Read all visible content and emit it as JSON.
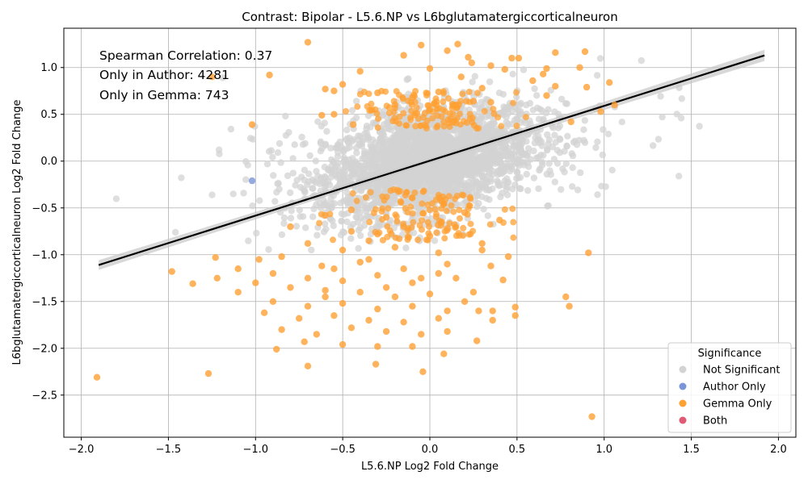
{
  "chart_data": {
    "type": "scatter",
    "title": "Contrast: Bipolar - L5.6.NP vs L6bglutamatergiccorticalneuron",
    "xlabel": "L5.6.NP Log2 Fold Change",
    "ylabel": "L6bglutamatergiccorticalneuron Log2 Fold Change",
    "xlim": [
      -2.1,
      2.1
    ],
    "ylim": [
      -2.95,
      1.42
    ],
    "x_ticks": [
      -2.0,
      -1.5,
      -1.0,
      -0.5,
      0.0,
      0.5,
      1.0,
      1.5,
      2.0
    ],
    "y_ticks": [
      -2.5,
      -2.0,
      -1.5,
      -1.0,
      -0.5,
      0.0,
      0.5,
      1.0
    ],
    "x_tick_labels": [
      "−2.0",
      "−1.5",
      "−1.0",
      "−0.5",
      "0.0",
      "0.5",
      "1.0",
      "1.5",
      "2.0"
    ],
    "y_tick_labels": [
      "−2.5",
      "−2.0",
      "−1.5",
      "−1.0",
      "−0.5",
      "0.0",
      "0.5",
      "1.0"
    ],
    "grid": true,
    "annotations": [
      "Spearman Correlation: 0.37",
      "Only in Author: 4281",
      "Only in Gemma: 743"
    ],
    "legend": {
      "title": "Significance",
      "placement": "lower-right",
      "entries": [
        {
          "label": "Not Significant",
          "color": "#d3d3d3"
        },
        {
          "label": "Author Only",
          "color": "#7b96d8"
        },
        {
          "label": "Gemma Only",
          "color": "#ffa033"
        },
        {
          "label": "Both",
          "color": "#e05a73"
        }
      ]
    },
    "regression_line": {
      "x": [
        -1.9,
        1.92
      ],
      "y": [
        -1.11,
        1.13
      ],
      "color": "#000000",
      "band_color": "#c8c8c8"
    },
    "series": [
      {
        "name": "Gemma Only",
        "color": "#ffa033",
        "points": [
          [
            -0.7,
            1.27
          ],
          [
            0.16,
            1.25
          ],
          [
            -0.05,
            1.24
          ],
          [
            0.72,
            1.16
          ],
          [
            0.89,
            1.17
          ],
          [
            0.1,
            1.18
          ],
          [
            -0.15,
            1.13
          ],
          [
            0.22,
            1.11
          ],
          [
            0.47,
            1.1
          ],
          [
            0.51,
            1.1
          ],
          [
            0.35,
            1.02
          ],
          [
            0.67,
            0.99
          ],
          [
            0.86,
            1.0
          ],
          [
            0.24,
            1.05
          ],
          [
            -0.4,
            0.96
          ],
          [
            0.0,
            0.99
          ],
          [
            -1.25,
            0.9
          ],
          [
            -0.92,
            0.92
          ],
          [
            0.18,
            0.9
          ],
          [
            0.43,
            0.98
          ],
          [
            0.65,
            0.93
          ],
          [
            1.03,
            0.84
          ],
          [
            0.59,
            0.86
          ],
          [
            0.72,
            0.8
          ],
          [
            -0.6,
            0.77
          ],
          [
            -0.5,
            0.82
          ],
          [
            0.3,
            0.78
          ],
          [
            0.9,
            0.79
          ],
          [
            -0.55,
            0.75
          ],
          [
            0.05,
            0.74
          ],
          [
            -0.3,
            0.73
          ],
          [
            1.06,
            0.6
          ],
          [
            0.67,
            0.7
          ],
          [
            0.35,
            0.63
          ],
          [
            0.25,
            0.64
          ],
          [
            -0.62,
            0.49
          ],
          [
            -0.55,
            0.5
          ],
          [
            0.98,
            0.53
          ],
          [
            0.81,
            0.42
          ],
          [
            -0.44,
            0.39
          ],
          [
            -1.02,
            0.39
          ],
          [
            0.12,
            0.45
          ],
          [
            -0.8,
            -0.7
          ],
          [
            -0.6,
            -0.58
          ],
          [
            -0.25,
            -0.6
          ],
          [
            -0.45,
            -0.52
          ],
          [
            0.2,
            -0.55
          ],
          [
            0.4,
            -0.63
          ],
          [
            -0.7,
            -0.88
          ],
          [
            -0.5,
            -0.95
          ],
          [
            -0.35,
            -0.85
          ],
          [
            -0.2,
            -0.92
          ],
          [
            0.05,
            -0.98
          ],
          [
            0.3,
            -0.88
          ],
          [
            0.45,
            -1.02
          ],
          [
            -0.85,
            -1.02
          ],
          [
            -1.23,
            -1.03
          ],
          [
            -0.98,
            -1.05
          ],
          [
            -0.62,
            -1.12
          ],
          [
            -0.4,
            -1.08
          ],
          [
            -0.15,
            -1.15
          ],
          [
            0.1,
            -1.1
          ],
          [
            0.35,
            -1.12
          ],
          [
            -1.48,
            -1.18
          ],
          [
            -1.1,
            -1.15
          ],
          [
            -0.9,
            -1.2
          ],
          [
            -0.7,
            -1.25
          ],
          [
            -0.5,
            -1.28
          ],
          [
            -0.3,
            -1.22
          ],
          [
            -0.1,
            -1.3
          ],
          [
            0.15,
            -1.25
          ],
          [
            0.42,
            -1.27
          ],
          [
            -1.36,
            -1.31
          ],
          [
            -1.22,
            -1.25
          ],
          [
            -1.0,
            -1.3
          ],
          [
            -0.8,
            -1.35
          ],
          [
            -0.6,
            -1.38
          ],
          [
            -0.4,
            -1.4
          ],
          [
            -0.2,
            -1.45
          ],
          [
            0.0,
            -1.42
          ],
          [
            0.25,
            -1.4
          ],
          [
            -1.1,
            -1.4
          ],
          [
            -0.9,
            -1.5
          ],
          [
            -0.7,
            -1.55
          ],
          [
            -0.5,
            -1.52
          ],
          [
            -0.3,
            -1.58
          ],
          [
            -0.1,
            -1.55
          ],
          [
            0.1,
            -1.6
          ],
          [
            0.36,
            -1.6
          ],
          [
            0.49,
            -1.56
          ],
          [
            -0.95,
            -1.62
          ],
          [
            -0.75,
            -1.68
          ],
          [
            -0.55,
            -1.65
          ],
          [
            -0.35,
            -1.7
          ],
          [
            -0.15,
            -1.72
          ],
          [
            0.05,
            -1.68
          ],
          [
            0.28,
            -1.6
          ],
          [
            0.49,
            -1.65
          ],
          [
            0.36,
            -1.7
          ],
          [
            -0.85,
            -1.8
          ],
          [
            -0.65,
            -1.85
          ],
          [
            -0.45,
            -1.78
          ],
          [
            -0.25,
            -1.82
          ],
          [
            -0.05,
            -1.85
          ],
          [
            0.1,
            -1.82
          ],
          [
            -0.88,
            -2.01
          ],
          [
            -0.72,
            -1.93
          ],
          [
            -0.5,
            -1.96
          ],
          [
            -0.3,
            -1.98
          ],
          [
            -0.1,
            -1.98
          ],
          [
            0.08,
            -2.06
          ],
          [
            0.27,
            -1.92
          ],
          [
            -0.7,
            -2.19
          ],
          [
            -0.31,
            -2.17
          ],
          [
            -0.04,
            -2.25
          ],
          [
            -1.27,
            -2.27
          ],
          [
            -1.91,
            -2.31
          ],
          [
            0.93,
            -2.73
          ],
          [
            0.78,
            -1.45
          ],
          [
            0.8,
            -1.55
          ],
          [
            0.91,
            -0.98
          ],
          [
            -0.2,
            0.6
          ],
          [
            0.0,
            0.55
          ],
          [
            -0.1,
            0.68
          ],
          [
            0.15,
            0.6
          ],
          [
            -0.3,
            -0.78
          ],
          [
            -0.15,
            -0.7
          ],
          [
            0.0,
            -0.8
          ],
          [
            0.1,
            -0.72
          ],
          [
            -0.45,
            -0.75
          ],
          [
            0.3,
            -0.95
          ],
          [
            -0.6,
            -1.45
          ],
          [
            -0.25,
            -1.35
          ],
          [
            0.2,
            -1.5
          ],
          [
            -0.05,
            -1.25
          ],
          [
            -0.35,
            -1.05
          ],
          [
            0.05,
            -1.2
          ],
          [
            -0.55,
            -1.15
          ]
        ]
      },
      {
        "name": "Author Only",
        "color": "#7b96d8",
        "points": [
          [
            -1.02,
            -0.21
          ]
        ]
      }
    ]
  }
}
